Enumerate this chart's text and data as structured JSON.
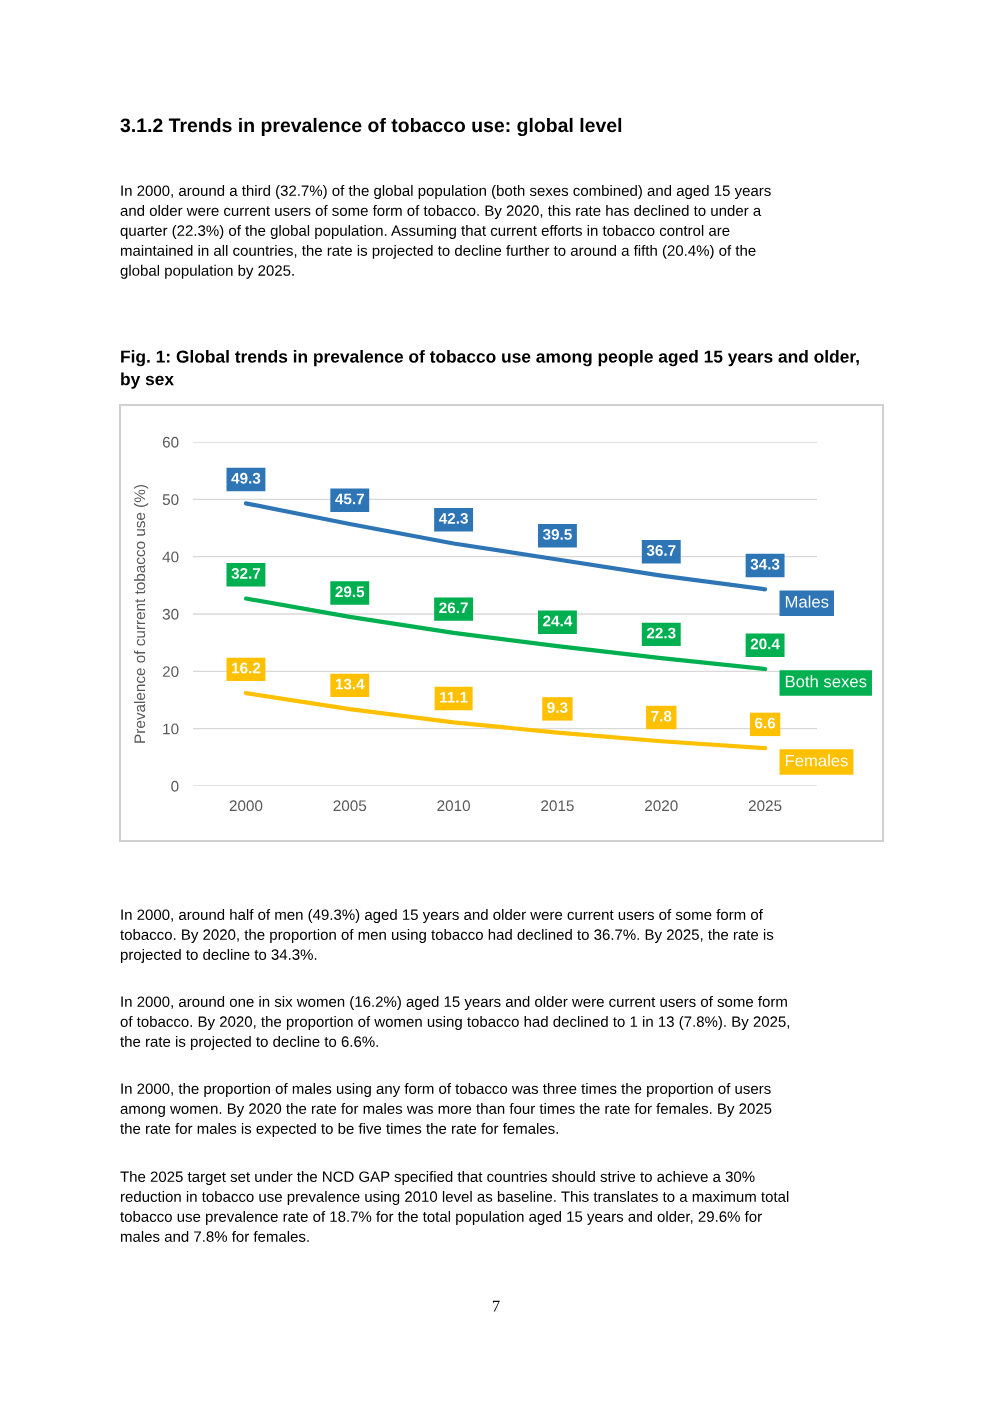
{
  "chart_data": {
    "type": "line",
    "title": "Fig. 1: Global trends in prevalence of tobacco use among people aged 15 years and older,\nby sex",
    "ylabel": "Prevalence of current tobacco use (%)",
    "categories": [
      "2000",
      "2005",
      "2010",
      "2015",
      "2020",
      "2025"
    ],
    "series": [
      {
        "name": "Males",
        "color": "#2e75b6",
        "values": [
          49.3,
          45.7,
          42.3,
          39.5,
          36.7,
          34.3
        ]
      },
      {
        "name": "Both sexes",
        "color": "#00b050",
        "values": [
          32.7,
          29.5,
          26.7,
          24.4,
          22.3,
          20.4
        ]
      },
      {
        "name": "Females",
        "color": "#ffc000",
        "values": [
          16.2,
          13.4,
          11.1,
          9.3,
          7.8,
          6.6
        ]
      }
    ],
    "ylim": [
      0,
      60
    ],
    "yticks": [
      0,
      10,
      20,
      30,
      40,
      50,
      60
    ],
    "grid": "y",
    "legend": false,
    "marker": "none",
    "line_style": "solid",
    "data_labels": true,
    "annotations": [
      "3.1.2 Trends in prevalence of tobacco use: global level",
      "In 2000, around a third (32.7%) of the global population (both sexes combined) and aged 15 years\nand older were current users of some form of tobacco. By 2020, this rate has declined to under a\nquarter (22.3%) of the global population. Assuming that current efforts in tobacco control are\nmaintained in all countries, the rate is projected to decline further to around a fifth (20.4%) of the\nglobal population by 2025.",
      "In 2000, around half of men (49.3%) aged 15 years and older were current users of some form of\ntobacco. By 2020, the proportion of men using tobacco had declined to 36.7%. By 2025, the rate is\nprojected to decline to 34.3%.",
      "In 2000, around one in six women (16.2%) aged 15 years and older were current users of some form\nof tobacco. By 2020, the proportion of women using tobacco had declined to 1 in 13 (7.8%). By 2025,\nthe rate is projected to decline to 6.6%.",
      "In 2000, the proportion of males using any form of tobacco was three times the proportion of users\namong women. By 2020 the rate for males was more than four times the rate for females. By 2025\nthe rate for males is expected to be five times the rate for females.",
      "The 2025 target set under the NCD GAP specified that countries should strive to achieve a 30%\nreduction in tobacco use prevalence using 2010 level as baseline. This translates to a maximum total\ntobacco use prevalence rate of 18.7% for the total population aged 15 years and older, 29.6% for\nmales and 7.8% for females.",
      "7"
    ]
  }
}
